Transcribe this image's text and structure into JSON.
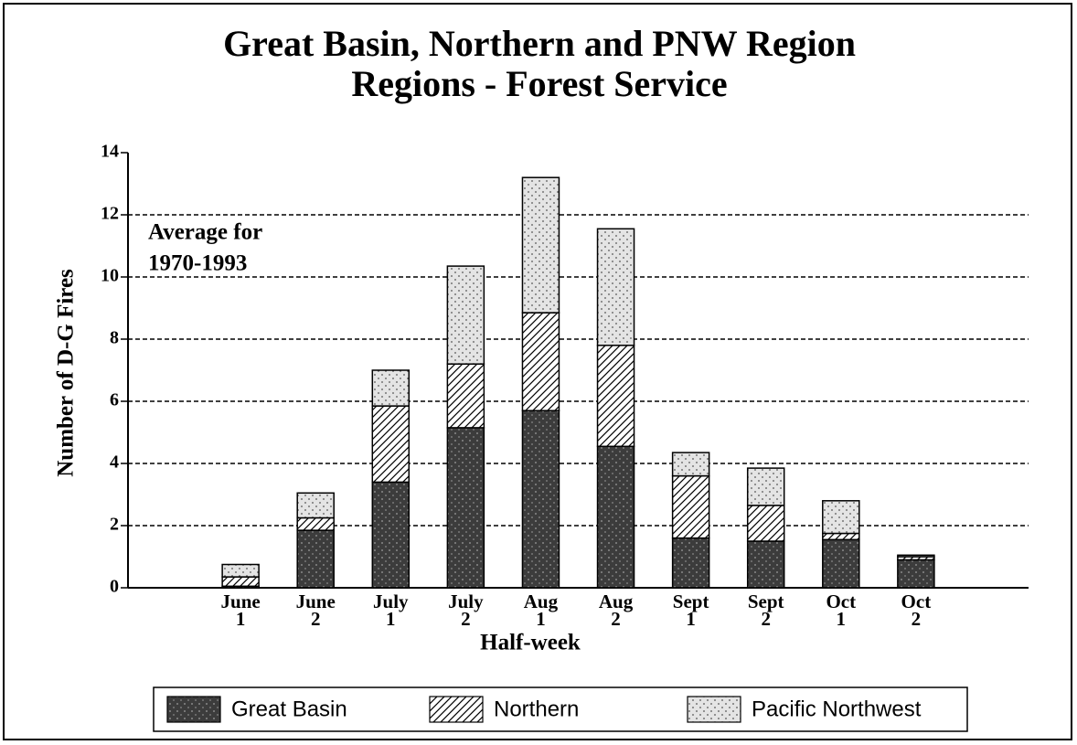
{
  "chart_data": {
    "type": "bar",
    "stacked": true,
    "title": [
      "Great Basin, Northern and PNW Region",
      "Regions - Forest Service"
    ],
    "annotation": [
      "Average for",
      "1970-1993"
    ],
    "x_label": "Half-week",
    "y_label": "Number of D-G Fires",
    "categories": [
      null,
      "June\n1",
      "June\n2",
      "July\n1",
      "July\n2",
      "Aug\n1",
      "Aug\n2",
      "Sept\n1",
      "Sept\n2",
      "Oct\n1",
      "Oct\n2",
      null
    ],
    "series": [
      {
        "name": "Great Basin",
        "color": "#3c3c3c",
        "pattern": "stipple",
        "values": [
          null,
          0.05,
          1.85,
          3.4,
          5.15,
          5.7,
          4.55,
          1.6,
          1.5,
          1.55,
          0.9,
          null
        ]
      },
      {
        "name": "Northern",
        "color": "#ffffff",
        "pattern": "hatch",
        "values": [
          null,
          0.3,
          0.4,
          2.45,
          2.05,
          3.15,
          3.25,
          2.0,
          1.15,
          0.2,
          0.1,
          null
        ]
      },
      {
        "name": "Pacific Northwest",
        "color": "#e4e4e4",
        "pattern": "dots",
        "values": [
          null,
          0.4,
          0.8,
          1.15,
          3.15,
          4.35,
          3.75,
          0.75,
          1.2,
          1.05,
          0.05,
          null
        ]
      }
    ],
    "ylim": [
      0,
      14
    ],
    "yticks": [
      0,
      2,
      4,
      6,
      8,
      10,
      12,
      14
    ],
    "grid": true,
    "legend": "bottom"
  }
}
